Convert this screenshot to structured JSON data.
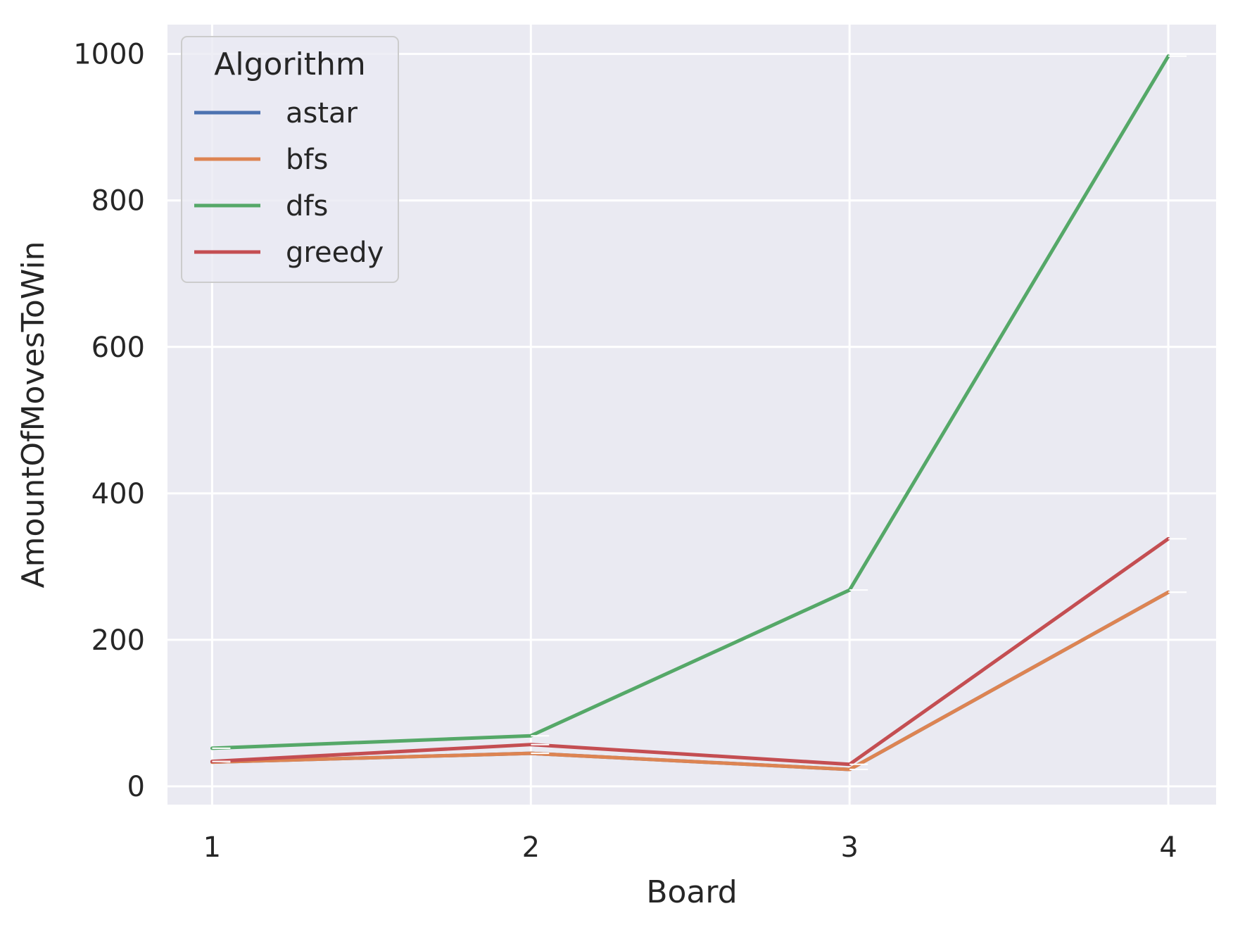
{
  "chart_data": {
    "type": "line",
    "xlabel": "Board",
    "ylabel": "AmountOfMovesToWin",
    "x": [
      1,
      2,
      3,
      4
    ],
    "xlim": [
      0.86,
      4.15
    ],
    "ylim": [
      -25,
      1040
    ],
    "xticks": [
      1,
      2,
      3,
      4
    ],
    "yticks": [
      0,
      200,
      400,
      600,
      800,
      1000
    ],
    "grid": true,
    "legend": {
      "title": "Algorithm",
      "placement": "top-left"
    },
    "series": [
      {
        "name": "astar",
        "color": "#4c72b0",
        "values": [
          33,
          45,
          23,
          265
        ]
      },
      {
        "name": "bfs",
        "color": "#dd8452",
        "values": [
          33,
          45,
          23,
          265
        ]
      },
      {
        "name": "dfs",
        "color": "#55a868",
        "values": [
          52,
          69,
          268,
          997
        ]
      },
      {
        "name": "greedy",
        "color": "#c44e52",
        "values": [
          34,
          57,
          30,
          338
        ]
      }
    ]
  }
}
